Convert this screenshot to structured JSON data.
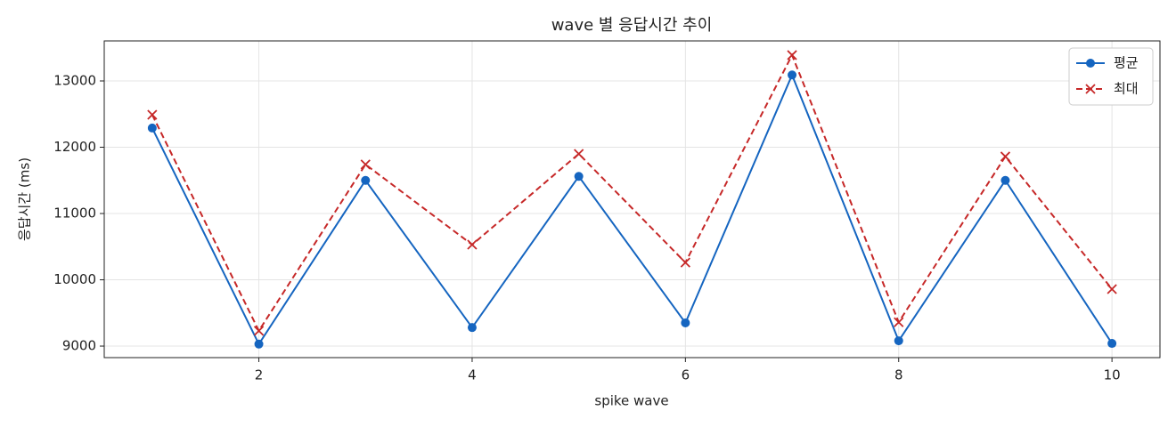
{
  "chart_data": {
    "type": "line",
    "title": "wave 별 응답시간 추이",
    "x_label": "spike wave",
    "y_label": "응답시간 (ms)",
    "x": [
      1,
      2,
      3,
      4,
      5,
      6,
      7,
      8,
      9,
      10
    ],
    "series": [
      {
        "name": "평균",
        "color": "#1565c0",
        "dash": false,
        "marker": "circle",
        "values": [
          12290,
          9030,
          11500,
          9280,
          11560,
          9350,
          13090,
          9080,
          11500,
          9040
        ]
      },
      {
        "name": "최대",
        "color": "#c62828",
        "dash": true,
        "marker": "x",
        "values": [
          12490,
          9230,
          11740,
          10530,
          11900,
          10260,
          13390,
          9360,
          11860,
          9860
        ]
      }
    ],
    "xlim": [
      0.55,
      10.45
    ],
    "ylim": [
      8826,
      13604
    ],
    "xticks": [
      2,
      4,
      6,
      8,
      10
    ],
    "yticks": [
      9000,
      10000,
      11000,
      12000,
      13000
    ],
    "grid": true,
    "legend": "upper right"
  }
}
